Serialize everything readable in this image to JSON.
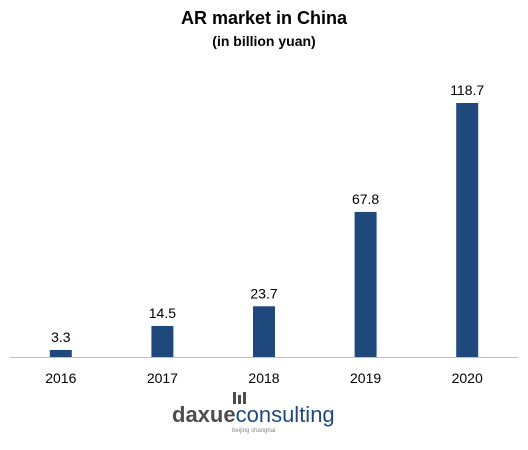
{
  "chart_data": {
    "type": "bar",
    "title": "AR market in China",
    "subtitle": "(in billion yuan)",
    "categories": [
      "2016",
      "2017",
      "2018",
      "2019",
      "2020"
    ],
    "values": [
      3.3,
      14.5,
      23.7,
      67.8,
      118.7
    ],
    "value_labels": [
      "3.3",
      "14.5",
      "23.7",
      "67.8",
      "118.7"
    ],
    "ylim": [
      0,
      118.7
    ],
    "grid": false,
    "legend": "none",
    "colors": {
      "bar": "#1f497d",
      "axis": "#c0c0c0",
      "text": "#000000"
    }
  },
  "logo": {
    "brand_part1": "daxue",
    "brand_part2": "consulting",
    "tagline": "beijing shanghai",
    "colors": {
      "dark": "#4d4d4d",
      "blue": "#1f497d"
    }
  }
}
